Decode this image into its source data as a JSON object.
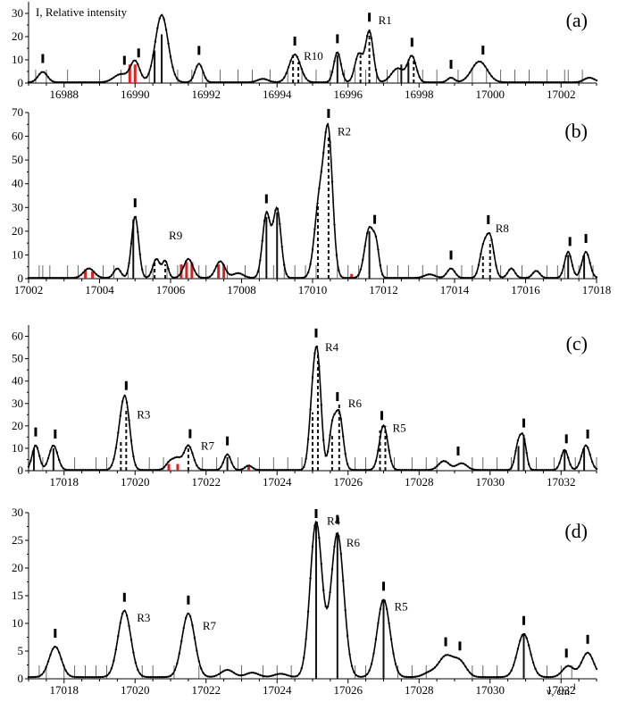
{
  "chart_data": [
    {
      "panel": "(a)",
      "type": "line",
      "ylabel": "I, Relative intensity",
      "xlim": [
        16987,
        17003
      ],
      "ylim": [
        0,
        35
      ],
      "xticks": [
        16988,
        16990,
        16992,
        16994,
        16996,
        16998,
        17000,
        17002
      ],
      "yticks": [
        0,
        10,
        20,
        30
      ],
      "peaks": [
        {
          "x": 16987.4,
          "h": 4.5,
          "w": 0.13
        },
        {
          "x": 16989.6,
          "h": 3.5,
          "w": 0.2
        },
        {
          "x": 16990.0,
          "h": 9,
          "w": 0.13
        },
        {
          "x": 16990.75,
          "h": 29,
          "w": 0.18
        },
        {
          "x": 16991.8,
          "h": 8,
          "w": 0.11
        },
        {
          "x": 16993.6,
          "h": 1.5,
          "w": 0.15
        },
        {
          "x": 16994.5,
          "h": 12,
          "w": 0.16
        },
        {
          "x": 16995.7,
          "h": 13,
          "w": 0.1
        },
        {
          "x": 16996.3,
          "h": 12,
          "w": 0.11
        },
        {
          "x": 16996.6,
          "h": 22,
          "w": 0.11
        },
        {
          "x": 16997.4,
          "h": 6,
          "w": 0.18
        },
        {
          "x": 16997.8,
          "h": 11,
          "w": 0.12
        },
        {
          "x": 16998.9,
          "h": 2,
          "w": 0.1
        },
        {
          "x": 16999.7,
          "h": 9,
          "w": 0.22
        },
        {
          "x": 17002.8,
          "h": 2,
          "w": 0.15
        }
      ],
      "markers": [
        16987.4,
        16989.7,
        16990.1,
        16991.8,
        16994.5,
        16995.7,
        16996.6,
        16997.8,
        16998.9,
        16999.8
      ],
      "ticks": [
        16987.2,
        16987.5,
        16988.1,
        16989.0,
        16989.6,
        16990.4,
        16991.2,
        16991.6,
        16991.9,
        16992.4,
        16992.9,
        16993.3,
        16993.8,
        16994.3,
        16994.7,
        16995.1,
        16995.5,
        16995.9,
        16996.2,
        16996.5,
        16996.8,
        16997.1,
        16997.4,
        16997.7,
        16998.1,
        16998.5,
        16999.1,
        16999.5,
        16999.9,
        17000.3,
        17000.7,
        17001.1,
        17001.6,
        17002.1,
        17002.2,
        17002.6
      ],
      "sticks": [
        [
          16989.85,
          8,
          "r"
        ],
        [
          16990.0,
          8,
          "r"
        ],
        [
          16990.55,
          14,
          "k"
        ],
        [
          16990.75,
          21,
          "k"
        ],
        [
          16994.45,
          12,
          "d"
        ],
        [
          16994.6,
          9,
          "d"
        ],
        [
          16995.7,
          12,
          "k"
        ],
        [
          16996.35,
          12,
          "d"
        ],
        [
          16996.6,
          22,
          "d"
        ],
        [
          16997.5,
          8,
          "k"
        ],
        [
          16997.7,
          9,
          "k"
        ],
        [
          16997.85,
          11,
          "d"
        ]
      ],
      "annotations": [
        {
          "text": "R10",
          "x": 16994.6,
          "y": 11.5
        },
        {
          "text": "R1",
          "x": 16996.7,
          "y": 27
        }
      ]
    },
    {
      "panel": "(b)",
      "type": "line",
      "xlim": [
        17002,
        17018
      ],
      "ylim": [
        0,
        70
      ],
      "xticks": [
        17002,
        17004,
        17006,
        17008,
        17010,
        17012,
        17014,
        17016,
        17018
      ],
      "yticks": [
        0,
        10,
        20,
        30,
        40,
        50,
        60,
        70
      ],
      "peaks": [
        {
          "x": 17003.7,
          "h": 4,
          "w": 0.15
        },
        {
          "x": 17004.5,
          "h": 4,
          "w": 0.1
        },
        {
          "x": 17005.0,
          "h": 26,
          "w": 0.1
        },
        {
          "x": 17005.6,
          "h": 8,
          "w": 0.1
        },
        {
          "x": 17005.85,
          "h": 7,
          "w": 0.08
        },
        {
          "x": 17006.5,
          "h": 8,
          "w": 0.13
        },
        {
          "x": 17007.4,
          "h": 7,
          "w": 0.13
        },
        {
          "x": 17007.9,
          "h": 2,
          "w": 0.15
        },
        {
          "x": 17008.7,
          "h": 27,
          "w": 0.11
        },
        {
          "x": 17009.0,
          "h": 29,
          "w": 0.11
        },
        {
          "x": 17010.2,
          "h": 33,
          "w": 0.14
        },
        {
          "x": 17010.45,
          "h": 57,
          "w": 0.12
        },
        {
          "x": 17011.6,
          "h": 21,
          "w": 0.13
        },
        {
          "x": 17011.8,
          "h": 10,
          "w": 0.08
        },
        {
          "x": 17013.3,
          "h": 1.5,
          "w": 0.15
        },
        {
          "x": 17013.9,
          "h": 4,
          "w": 0.11
        },
        {
          "x": 17014.8,
          "h": 11,
          "w": 0.1
        },
        {
          "x": 17015.0,
          "h": 17,
          "w": 0.11
        },
        {
          "x": 17015.6,
          "h": 4,
          "w": 0.1
        },
        {
          "x": 17016.3,
          "h": 3,
          "w": 0.1
        },
        {
          "x": 17017.2,
          "h": 11,
          "w": 0.1
        },
        {
          "x": 17017.7,
          "h": 11,
          "w": 0.11
        }
      ],
      "markers": [
        17005.0,
        17008.7,
        17010.45,
        17011.75,
        17013.9,
        17014.95,
        17017.25,
        17017.7
      ],
      "ticks": [
        17002.3,
        17002.4,
        17002.6,
        17003.1,
        17003.4,
        17004.1,
        17004.4,
        17004.8,
        17005.3,
        17005.5,
        17005.9,
        17006.2,
        17006.8,
        17007.0,
        17007.6,
        17008.1,
        17008.5,
        17008.9,
        17009.2,
        17009.5,
        17009.8,
        17010.1,
        17010.7,
        17011.0,
        17011.3,
        17012.1,
        17012.4,
        17012.7,
        17013.1,
        17013.5,
        17014.2,
        17014.5,
        17015.3,
        17015.9,
        17016.6,
        17016.9,
        17017.1,
        17017.5,
        17017.9
      ],
      "sticks": [
        [
          17003.6,
          4,
          "r"
        ],
        [
          17003.8,
          3,
          "r"
        ],
        [
          17004.95,
          25,
          "k"
        ],
        [
          17005.55,
          7,
          "d"
        ],
        [
          17005.85,
          6,
          "d"
        ],
        [
          17006.3,
          6,
          "r"
        ],
        [
          17006.45,
          7,
          "r"
        ],
        [
          17006.6,
          7,
          "r"
        ],
        [
          17007.35,
          6,
          "r"
        ],
        [
          17007.5,
          6,
          "r"
        ],
        [
          17008.7,
          26,
          "k"
        ],
        [
          17009.0,
          28,
          "k"
        ],
        [
          17010.15,
          32,
          "d"
        ],
        [
          17010.45,
          60,
          "d"
        ],
        [
          17011.1,
          2,
          "r"
        ],
        [
          17011.6,
          20,
          "k"
        ],
        [
          17014.8,
          10,
          "d"
        ],
        [
          17015.0,
          16,
          "d"
        ],
        [
          17017.2,
          10,
          "k"
        ],
        [
          17017.65,
          10,
          "k"
        ]
      ],
      "annotations": [
        {
          "text": "R9",
          "x": 17005.8,
          "y": 18
        },
        {
          "text": "R2",
          "x": 17010.55,
          "y": 62
        },
        {
          "text": "R8",
          "x": 17015.0,
          "y": 21
        }
      ]
    },
    {
      "panel": "(c)",
      "type": "line",
      "xlim": [
        17017,
        17033
      ],
      "ylim": [
        0,
        65
      ],
      "xticks": [
        17018,
        17020,
        17022,
        17024,
        17026,
        17028,
        17030,
        17032
      ],
      "yticks": [
        0,
        10,
        20,
        30,
        40,
        50,
        60
      ],
      "peaks": [
        {
          "x": 17017.2,
          "h": 11,
          "w": 0.1
        },
        {
          "x": 17017.7,
          "h": 11,
          "w": 0.12
        },
        {
          "x": 17019.6,
          "h": 15,
          "w": 0.13
        },
        {
          "x": 17019.75,
          "h": 24,
          "w": 0.12
        },
        {
          "x": 17021.0,
          "h": 4,
          "w": 0.12
        },
        {
          "x": 17021.2,
          "h": 4,
          "w": 0.1
        },
        {
          "x": 17021.5,
          "h": 11,
          "w": 0.13
        },
        {
          "x": 17022.6,
          "h": 7,
          "w": 0.1
        },
        {
          "x": 17023.2,
          "h": 2,
          "w": 0.1
        },
        {
          "x": 17025.0,
          "h": 27,
          "w": 0.1
        },
        {
          "x": 17025.15,
          "h": 44,
          "w": 0.1
        },
        {
          "x": 17025.55,
          "h": 17,
          "w": 0.09
        },
        {
          "x": 17025.75,
          "h": 25,
          "w": 0.11
        },
        {
          "x": 17027.0,
          "h": 20,
          "w": 0.12
        },
        {
          "x": 17028.7,
          "h": 4,
          "w": 0.15
        },
        {
          "x": 17029.2,
          "h": 3,
          "w": 0.15
        },
        {
          "x": 17030.8,
          "h": 12,
          "w": 0.09
        },
        {
          "x": 17030.95,
          "h": 12,
          "w": 0.08
        },
        {
          "x": 17032.1,
          "h": 9,
          "w": 0.1
        },
        {
          "x": 17032.7,
          "h": 11,
          "w": 0.12
        }
      ],
      "markers": [
        17017.2,
        17017.75,
        17019.75,
        17021.55,
        17022.6,
        17025.1,
        17025.7,
        17026.95,
        17029.1,
        17030.95,
        17032.15,
        17032.75
      ],
      "ticks": [
        17017.4,
        17018.3,
        17018.9,
        17019.2,
        17020.4,
        17020.8,
        17021.9,
        17022.3,
        17022.9,
        17023.5,
        17023.9,
        17024.3,
        17024.7,
        17026.2,
        17026.5,
        17027.3,
        17027.8,
        17028.2,
        17028.5,
        17029.5,
        17029.8,
        17030.2,
        17030.6,
        17031.3,
        17031.8,
        17032.4,
        17033.0
      ],
      "sticks": [
        [
          17017.15,
          10,
          "k"
        ],
        [
          17017.7,
          10,
          "k"
        ],
        [
          17019.6,
          14,
          "d"
        ],
        [
          17019.75,
          28,
          "d"
        ],
        [
          17020.95,
          3,
          "r"
        ],
        [
          17021.2,
          3,
          "r"
        ],
        [
          17021.5,
          11,
          "d"
        ],
        [
          17022.6,
          6,
          "k"
        ],
        [
          17023.2,
          2,
          "r"
        ],
        [
          17025.0,
          26,
          "d"
        ],
        [
          17025.15,
          52,
          "d"
        ],
        [
          17025.55,
          16,
          "d"
        ],
        [
          17025.75,
          30,
          "d"
        ],
        [
          17026.9,
          18,
          "d"
        ],
        [
          17027.05,
          20,
          "d"
        ],
        [
          17030.8,
          11,
          "k"
        ],
        [
          17030.95,
          16,
          "k"
        ],
        [
          17032.1,
          9,
          "k"
        ],
        [
          17032.65,
          10,
          "k"
        ]
      ],
      "annotations": [
        {
          "text": "R3",
          "x": 17019.9,
          "y": 25
        },
        {
          "text": "R7",
          "x": 17021.7,
          "y": 11
        },
        {
          "text": "R4",
          "x": 17025.2,
          "y": 55
        },
        {
          "text": "R6",
          "x": 17025.85,
          "y": 30
        },
        {
          "text": "R5",
          "x": 17027.1,
          "y": 19
        }
      ]
    },
    {
      "panel": "(d)",
      "type": "line",
      "xlabel": "ν, cm",
      "xlabel_sup": "-1",
      "xlim": [
        17017,
        17033
      ],
      "ylim": [
        0,
        30
      ],
      "xticks": [
        17018,
        17020,
        17022,
        17024,
        17026,
        17028,
        17030,
        17032
      ],
      "yticks": [
        0,
        5,
        10,
        15,
        20,
        25,
        30
      ],
      "peaks": [
        {
          "x": 17017.75,
          "h": 5.5,
          "w": 0.17
        },
        {
          "x": 17019.7,
          "h": 12,
          "w": 0.18
        },
        {
          "x": 17021.5,
          "h": 11.5,
          "w": 0.18
        },
        {
          "x": 17022.6,
          "h": 1.3,
          "w": 0.18
        },
        {
          "x": 17023.3,
          "h": 0.8,
          "w": 0.18
        },
        {
          "x": 17024.1,
          "h": 0.6,
          "w": 0.18
        },
        {
          "x": 17025.1,
          "h": 28,
          "w": 0.17
        },
        {
          "x": 17025.7,
          "h": 26,
          "w": 0.18
        },
        {
          "x": 17027.0,
          "h": 14,
          "w": 0.18
        },
        {
          "x": 17028.3,
          "h": 0.8,
          "w": 0.18
        },
        {
          "x": 17028.75,
          "h": 3.7,
          "w": 0.2
        },
        {
          "x": 17029.15,
          "h": 2.7,
          "w": 0.18
        },
        {
          "x": 17030.95,
          "h": 7.8,
          "w": 0.18
        },
        {
          "x": 17032.2,
          "h": 2,
          "w": 0.16
        },
        {
          "x": 17032.75,
          "h": 4.4,
          "w": 0.17
        }
      ],
      "markers": [
        17017.75,
        17019.7,
        17021.5,
        17025.1,
        17025.7,
        17027.0,
        17028.75,
        17029.15,
        17030.95,
        17032.15,
        17032.75
      ],
      "ticks": [
        17017.3,
        17017.5,
        17018.0,
        17018.3,
        17018.6,
        17018.9,
        17019.2,
        17020.2,
        17020.5,
        17021.1,
        17021.8,
        17022.4,
        17023.0,
        17023.6,
        17024.0,
        17024.4,
        17026.2,
        17026.5,
        17027.4,
        17027.8,
        17028.2,
        17029.5,
        17029.8,
        17030.2,
        17031.6,
        17032.0,
        17032.3
      ],
      "sticks": [
        [
          17025.1,
          28,
          "k"
        ],
        [
          17025.7,
          26,
          "k"
        ],
        [
          17027.0,
          14,
          "k"
        ],
        [
          17030.95,
          8,
          "k"
        ]
      ],
      "annotations": [
        {
          "text": "R3",
          "x": 17019.9,
          "y": 11
        },
        {
          "text": "R7",
          "x": 17021.75,
          "y": 9.5
        },
        {
          "text": "R4",
          "x": 17025.25,
          "y": 28.5
        },
        {
          "text": "R6",
          "x": 17025.8,
          "y": 24.5
        },
        {
          "text": "R5",
          "x": 17027.15,
          "y": 13
        }
      ]
    }
  ]
}
